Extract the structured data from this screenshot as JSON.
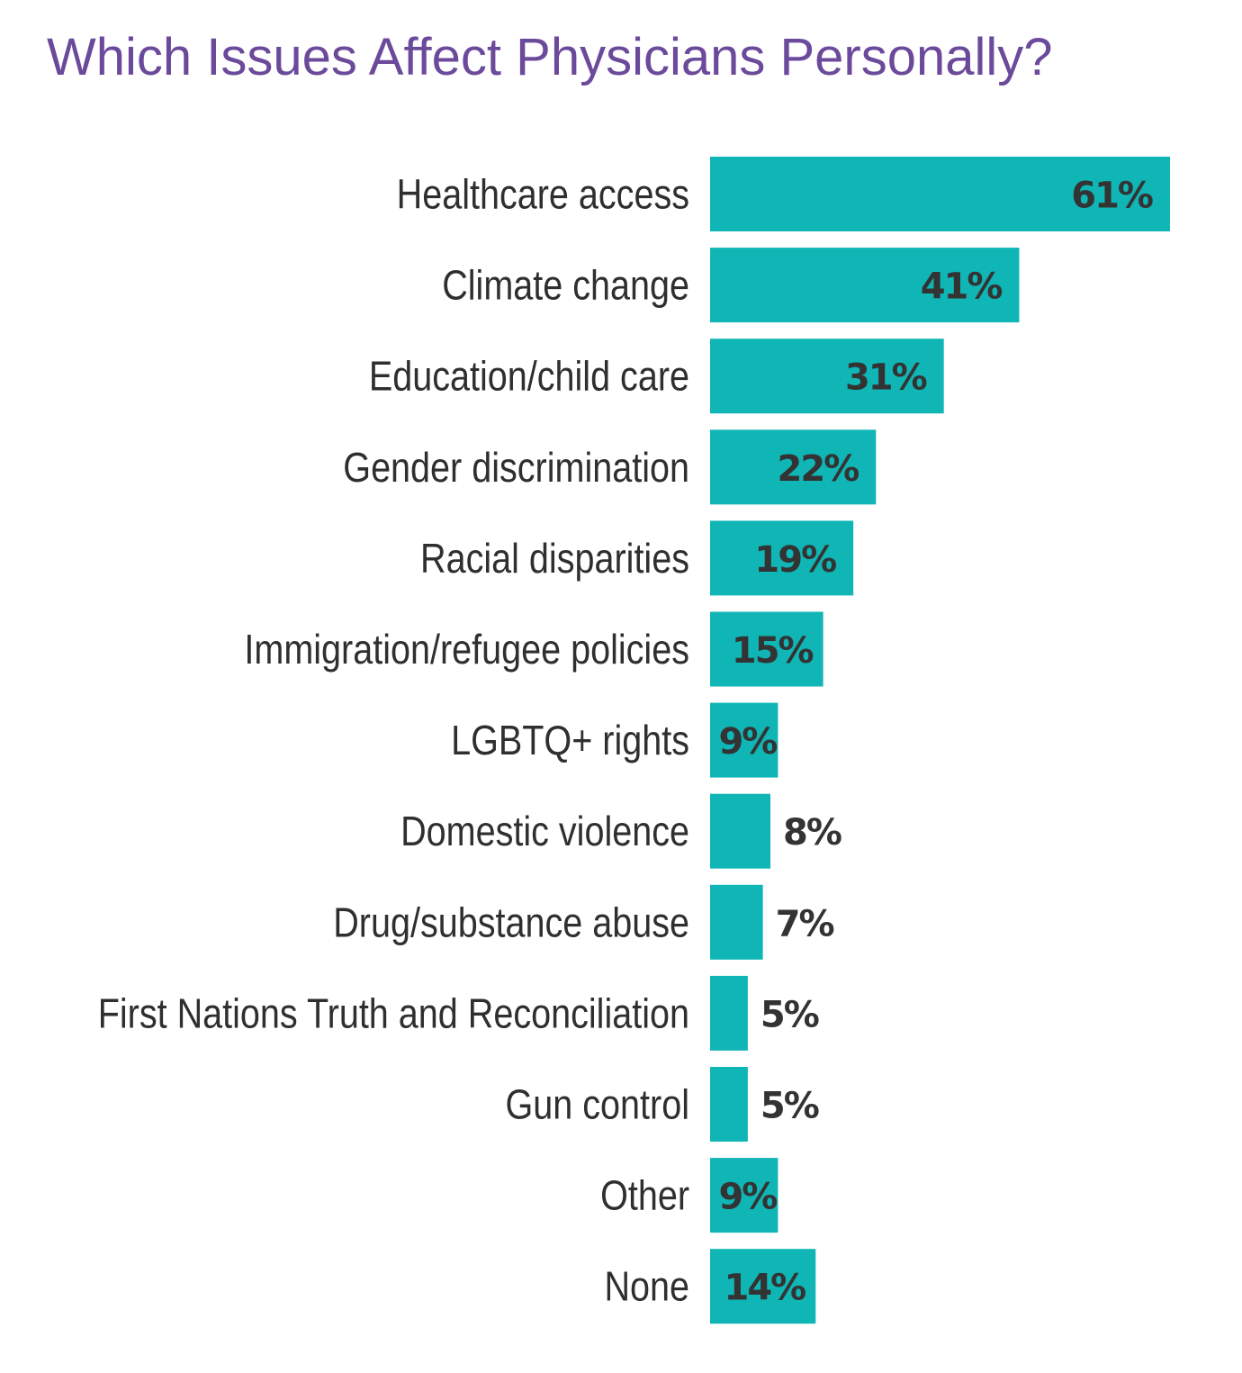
{
  "chart_data": {
    "type": "bar",
    "orientation": "horizontal",
    "title": "Which Issues Affect Physicians Personally?",
    "xlabel": "",
    "ylabel": "",
    "value_suffix": "%",
    "categories": [
      "Healthcare access",
      "Climate change",
      "Education/child care",
      "Gender discrimination",
      "Racial disparities",
      "Immigration/refugee policies",
      "LGBTQ+ rights",
      "Domestic violence",
      "Drug/substance abuse",
      "First Nations Truth and Reconciliation",
      "Gun control",
      "Other",
      "None"
    ],
    "values": [
      61,
      41,
      31,
      22,
      19,
      15,
      9,
      8,
      7,
      5,
      5,
      9,
      14
    ],
    "value_labels": [
      "61%",
      "41%",
      "31%",
      "22%",
      "19%",
      "15%",
      "9%",
      "8%",
      "7%",
      "5%",
      "5%",
      "9%",
      "14%"
    ],
    "grid": false,
    "legend": "none",
    "colors": {
      "bar": "#10b5b5",
      "title": "#6b4a9b",
      "text": "#333333"
    }
  }
}
